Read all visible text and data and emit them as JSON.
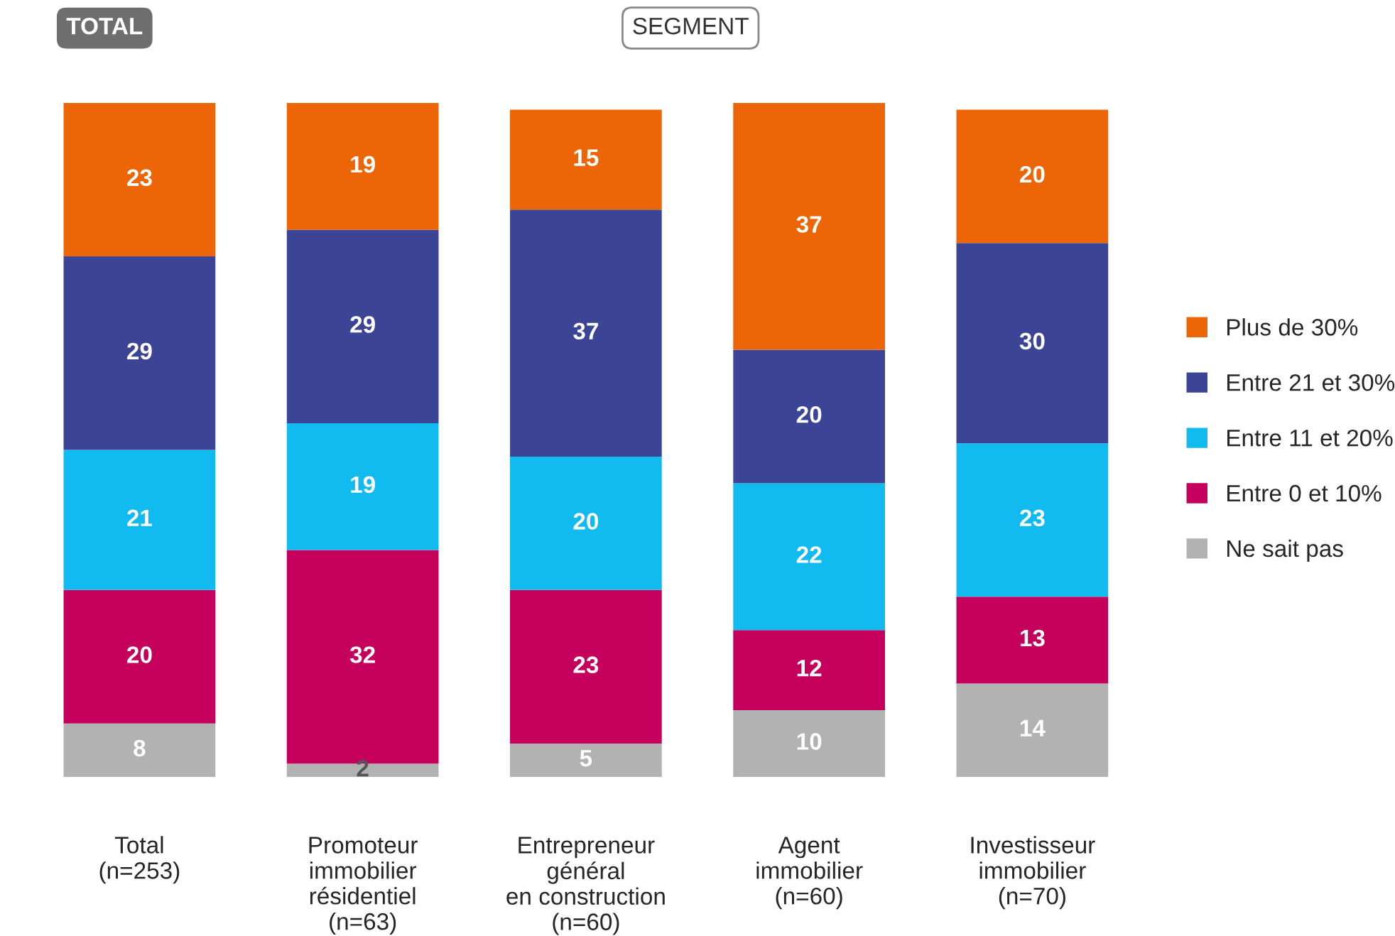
{
  "chart_data": {
    "type": "bar",
    "stacked": true,
    "data_labels": true,
    "legend": "right",
    "grid": false,
    "categories": [
      "Total\n(n=253)",
      "Promoteur\nimmobilier\nrésidentiel\n(n=63)",
      "Entrepreneur\ngénéral\nen construction\n(n=60)",
      "Agent\nimmobilier\n(n=60)",
      "Investisseur\nimmobilier\n(n=70)"
    ],
    "annotations": [
      "TOTAL",
      "SEGMENT"
    ],
    "series": [
      {
        "name": "Ne sait pas",
        "color": "#b2b2b2",
        "values": [
          8,
          2,
          5,
          10,
          14
        ]
      },
      {
        "name": "Entre 0 et 10%",
        "color": "#c4005c",
        "values": [
          20,
          32,
          23,
          12,
          13
        ]
      },
      {
        "name": "Entre 11 et 20%",
        "color": "#12bbef",
        "values": [
          21,
          19,
          20,
          22,
          23
        ]
      },
      {
        "name": "Entre 21 et 30%",
        "color": "#3c4496",
        "values": [
          29,
          29,
          37,
          20,
          30
        ]
      },
      {
        "name": "Plus de 30%",
        "color": "#ec6608",
        "values": [
          23,
          19,
          15,
          37,
          20
        ]
      }
    ]
  }
}
